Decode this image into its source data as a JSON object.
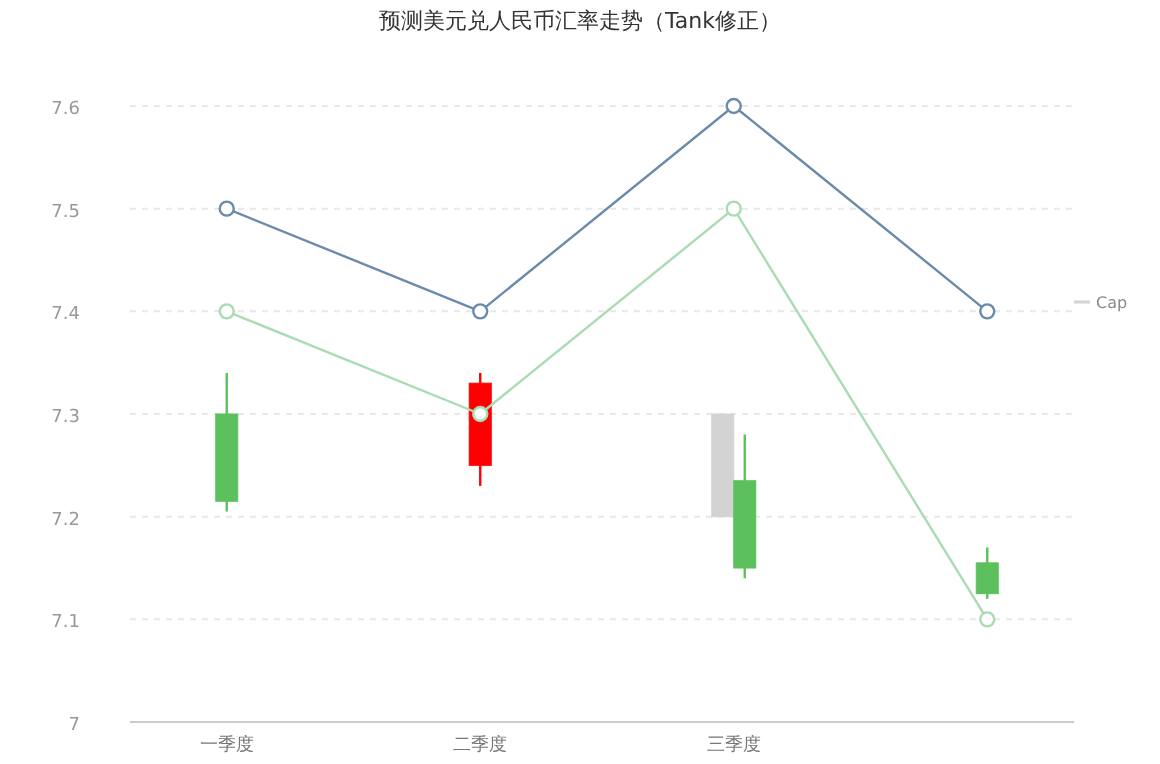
{
  "chart_data": {
    "type": "candlestick",
    "title": "预测美元兑人民币汇率走势（Tank修正）",
    "categories": [
      "一季度",
      "二季度",
      "三季度",
      null
    ],
    "ylim": [
      7,
      7.6
    ],
    "yticks": [
      7,
      7.1,
      7.2,
      7.3,
      7.4,
      7.5,
      7.6
    ],
    "grid": "y",
    "legend": "right",
    "marker": "circle",
    "series": [
      {
        "type": "line",
        "color": "#6b8bab",
        "values": [
          7.5,
          7.4,
          7.6,
          7.4
        ]
      },
      {
        "type": "line",
        "color": "#a9dbb4",
        "values": [
          7.4,
          7.3,
          7.5,
          7.1
        ]
      },
      {
        "name": "Cap",
        "color": "#d3d3d3",
        "ohlc": [
          null,
          null,
          [
            7.3,
            7.3,
            7.2,
            7.2
          ],
          null
        ]
      },
      {
        "colors": [
          "#5cc15c",
          "#ff0000",
          "#5cc15c",
          "#5cc15c"
        ],
        "ohlc": [
          [
            7.3,
            7.34,
            7.205,
            7.215
          ],
          [
            7.25,
            7.34,
            7.23,
            7.33
          ],
          [
            7.235,
            7.28,
            7.14,
            7.15
          ],
          [
            7.155,
            7.17,
            7.12,
            7.125
          ]
        ]
      }
    ]
  }
}
